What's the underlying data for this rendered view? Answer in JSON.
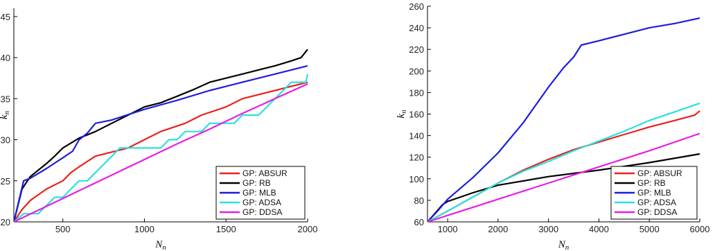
{
  "chart_data": [
    {
      "type": "line",
      "xlabel": "N",
      "xlabel_sub": "n",
      "ylabel": "k",
      "ylabel_sub": "n",
      "xlim": [
        200,
        2000
      ],
      "ylim": [
        20,
        46
      ],
      "xticks": [
        500,
        1000,
        1500,
        2000
      ],
      "yticks": [
        20,
        25,
        30,
        35,
        40,
        45
      ],
      "grid": false,
      "legend_position": "bottom-right",
      "series": [
        {
          "name": "GP: ABSUR",
          "color": "#e8201c",
          "x": [
            200,
            250,
            300,
            350,
            400,
            450,
            500,
            550,
            600,
            700,
            800,
            900,
            1000,
            1100,
            1250,
            1350,
            1500,
            1600,
            1700,
            1800,
            1900,
            2000
          ],
          "y": [
            20,
            21.5,
            22.6,
            23.3,
            24,
            24.5,
            25,
            26,
            26.7,
            28,
            28.5,
            29,
            30,
            31,
            32,
            33,
            34,
            35,
            35.5,
            36,
            36.5,
            37
          ]
        },
        {
          "name": "GP: RB",
          "color": "#000000",
          "x": [
            200,
            250,
            300,
            350,
            400,
            450,
            500,
            550,
            600,
            700,
            800,
            900,
            1000,
            1100,
            1200,
            1300,
            1400,
            1500,
            1600,
            1700,
            1800,
            1900,
            1960,
            2000
          ],
          "y": [
            20,
            24,
            25.5,
            26.3,
            27.1,
            28,
            29,
            29.6,
            30.2,
            31,
            32,
            33,
            34,
            34.5,
            35.3,
            36.1,
            37,
            37.5,
            38,
            38.5,
            39,
            39.6,
            40,
            41
          ]
        },
        {
          "name": "GP: MLB",
          "color": "#1c1ce0",
          "x": [
            200,
            260,
            300,
            400,
            500,
            560,
            600,
            650,
            700,
            800,
            1000,
            1200,
            1400,
            1600,
            1800,
            2000
          ],
          "y": [
            20,
            25,
            25.3,
            26.5,
            27.8,
            28.6,
            30,
            30.8,
            32,
            32.4,
            33.7,
            34.8,
            36,
            37,
            38,
            39
          ]
        },
        {
          "name": "GP: ADSA",
          "color": "#2ae0e0",
          "x": [
            200,
            260,
            300,
            350,
            400,
            450,
            500,
            550,
            600,
            650,
            700,
            750,
            800,
            850,
            900,
            1000,
            1050,
            1100,
            1150,
            1200,
            1250,
            1300,
            1350,
            1400,
            1450,
            1500,
            1550,
            1600,
            1650,
            1700,
            1800,
            1850,
            1900,
            1950,
            1990,
            2000
          ],
          "y": [
            20,
            21,
            21,
            21,
            22,
            23,
            23,
            24,
            25,
            25,
            26,
            27,
            28,
            29,
            29,
            29,
            29,
            29,
            30,
            30,
            31,
            31,
            31,
            32,
            32,
            32,
            32,
            33,
            33,
            33,
            35,
            36,
            37,
            37,
            37,
            38
          ]
        },
        {
          "name": "GP: DDSA",
          "color": "#e81ce8",
          "x": [
            200,
            400,
            600,
            800,
            1000,
            1200,
            1400,
            1600,
            1800,
            2000
          ],
          "y": [
            20,
            21.9,
            23.8,
            25.7,
            27.6,
            29.5,
            31.3,
            33.2,
            35,
            36.8
          ]
        }
      ]
    },
    {
      "type": "line",
      "xlabel": "N",
      "xlabel_sub": "n",
      "ylabel": "k",
      "ylabel_sub": "n",
      "xlim": [
        600,
        6000
      ],
      "ylim": [
        60,
        260
      ],
      "xticks": [
        1000,
        2000,
        3000,
        4000,
        5000,
        6000
      ],
      "yticks": [
        60,
        80,
        100,
        120,
        140,
        160,
        180,
        200,
        220,
        240,
        260
      ],
      "grid": false,
      "legend_position": "bottom-right",
      "series": [
        {
          "name": "GP: ABSUR",
          "color": "#e8201c",
          "x": [
            600,
            800,
            1000,
            1500,
            2000,
            2500,
            3000,
            3500,
            4000,
            4500,
            5000,
            5500,
            5900,
            6000
          ],
          "y": [
            60,
            65,
            70,
            83,
            96,
            108,
            118,
            127,
            134,
            141,
            148,
            154,
            159,
            163
          ]
        },
        {
          "name": "GP: RB",
          "color": "#000000",
          "x": [
            600,
            750,
            900,
            1000,
            1500,
            2000,
            3000,
            4000,
            5000,
            6000
          ],
          "y": [
            60,
            68,
            76,
            79,
            87,
            94,
            102,
            108,
            115,
            123
          ]
        },
        {
          "name": "GP: MLB",
          "color": "#1c1ce0",
          "x": [
            600,
            800,
            1000,
            1500,
            2000,
            2500,
            3000,
            3300,
            3500,
            3650,
            4000,
            4500,
            5000,
            5500,
            6000
          ],
          "y": [
            60,
            70,
            81,
            101,
            124,
            152,
            185,
            203,
            213,
            224,
            228,
            234,
            240,
            244,
            249
          ]
        },
        {
          "name": "GP: ADSA",
          "color": "#2ae0e0",
          "x": [
            600,
            800,
            1000,
            1500,
            2000,
            2500,
            3000,
            3500,
            4000,
            4500,
            5000,
            5500,
            6000
          ],
          "y": [
            60,
            65,
            70,
            83,
            96,
            107,
            116,
            126,
            135,
            144,
            154,
            162,
            170
          ]
        },
        {
          "name": "GP: DDSA",
          "color": "#e81ce8",
          "x": [
            600,
            1000,
            2000,
            3000,
            4000,
            5000,
            6000
          ],
          "y": [
            60,
            66,
            81,
            96,
            111,
            126,
            142
          ]
        }
      ]
    }
  ]
}
